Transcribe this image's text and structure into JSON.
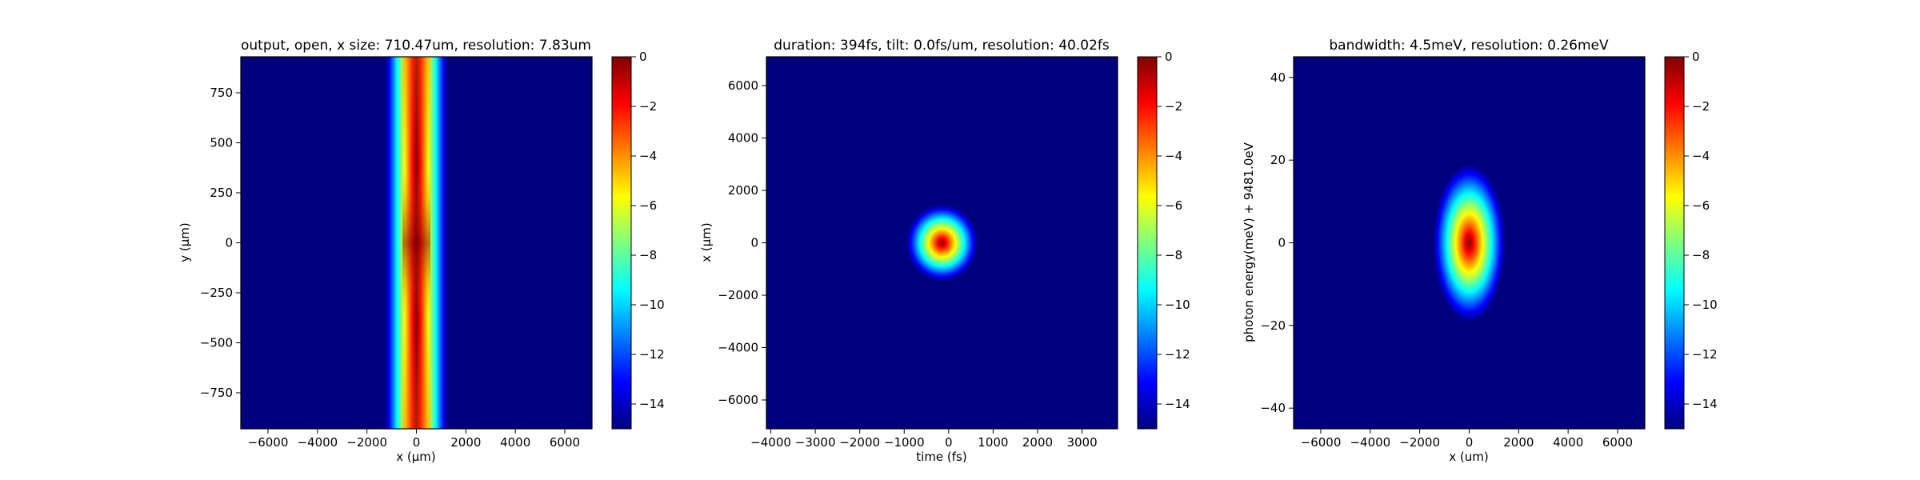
{
  "colormap_stops": [
    "#00007f",
    "#0000ff",
    "#007fff",
    "#00ffff",
    "#7fff7f",
    "#ffff00",
    "#ff7f00",
    "#ff0000",
    "#7f0000"
  ],
  "chart_data": [
    {
      "type": "heatmap",
      "title": "output, open, x size: 710.47um, resolution: 7.83um",
      "xlabel": "x (μm)",
      "ylabel": "y (μm)",
      "xlim": [
        -7100,
        7100
      ],
      "ylim": [
        -930,
        930
      ],
      "xticks": [
        -6000,
        -4000,
        -2000,
        0,
        2000,
        4000,
        6000
      ],
      "yticks": [
        -750,
        -500,
        -250,
        0,
        250,
        500,
        750
      ],
      "colorbar": {
        "min": -15,
        "max": 0,
        "ticks": [
          0,
          -2,
          -4,
          -6,
          -8,
          -10,
          -12,
          -14
        ]
      },
      "field": {
        "kind": "vertical-beam",
        "center_x": 0,
        "half_width_x": 1250,
        "waist_y": 0,
        "peak_db": 0,
        "edge_db": -4
      }
    },
    {
      "type": "heatmap",
      "title": "duration: 394fs, tilt: 0.0fs/um, resolution: 40.02fs",
      "xlabel": "time (fs)",
      "ylabel": "x (μm)",
      "xlim": [
        -4100,
        3800
      ],
      "ylim": [
        -7100,
        7100
      ],
      "xticks": [
        -4000,
        -3000,
        -2000,
        -1000,
        0,
        1000,
        2000,
        3000
      ],
      "yticks": [
        -6000,
        -4000,
        -2000,
        0,
        2000,
        4000,
        6000
      ],
      "colorbar": {
        "min": -15,
        "max": 0,
        "ticks": [
          0,
          -2,
          -4,
          -6,
          -8,
          -10,
          -12,
          -14
        ]
      },
      "field": {
        "kind": "gaussian-spot",
        "center_x": -150,
        "center_y": 0,
        "radius_x": 800,
        "radius_y": 1450
      }
    },
    {
      "type": "heatmap",
      "title": "bandwidth: 4.5meV, resolution: 0.26meV",
      "xlabel": "x (um)",
      "ylabel": "photon energy(meV) + 9481.0eV",
      "xlim": [
        -7100,
        7100
      ],
      "ylim": [
        -45,
        45
      ],
      "xticks": [
        -6000,
        -4000,
        -2000,
        0,
        2000,
        4000,
        6000
      ],
      "yticks": [
        -40,
        -20,
        0,
        20,
        40
      ],
      "colorbar": {
        "min": -15,
        "max": 0,
        "ticks": [
          0,
          -2,
          -4,
          -6,
          -8,
          -10,
          -12,
          -14
        ]
      },
      "field": {
        "kind": "gaussian-spot",
        "center_x": 0,
        "center_y": 0,
        "radius_x": 1450,
        "radius_y": 19
      }
    }
  ]
}
